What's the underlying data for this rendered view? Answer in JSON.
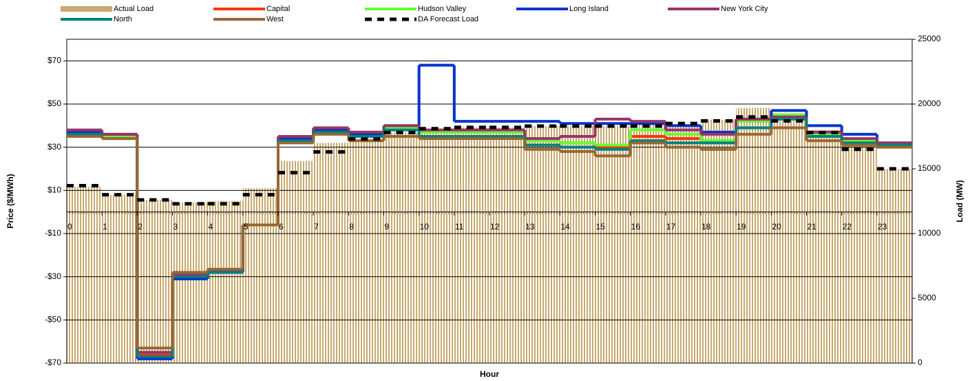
{
  "chart_data": {
    "type": "line",
    "x": [
      0,
      1,
      2,
      3,
      4,
      5,
      6,
      7,
      8,
      9,
      10,
      11,
      12,
      13,
      14,
      15,
      16,
      17,
      18,
      19,
      20,
      21,
      22,
      23
    ],
    "xlim": [
      0,
      24
    ],
    "xticks": [
      0,
      1,
      2,
      3,
      4,
      5,
      6,
      7,
      8,
      9,
      10,
      11,
      12,
      13,
      14,
      15,
      16,
      17,
      18,
      19,
      20,
      21,
      22,
      23
    ],
    "xlabel": "Hour",
    "ylabel": "Price ($/MWh)",
    "y2label": "Load (MW)",
    "ylim": [
      -70,
      80
    ],
    "yticks": [
      {
        "value": -70,
        "label": "-$70"
      },
      {
        "value": -50,
        "label": "-$50"
      },
      {
        "value": -30,
        "label": "-$30"
      },
      {
        "value": -10,
        "label": "-$10"
      },
      {
        "value": 10,
        "label": "$10"
      },
      {
        "value": 30,
        "label": "$30"
      },
      {
        "value": 50,
        "label": "$50"
      },
      {
        "value": 70,
        "label": "$70"
      }
    ],
    "y2lim": [
      0,
      25000
    ],
    "y2ticks": [
      0,
      5000,
      10000,
      15000,
      20000,
      25000
    ],
    "grid": true,
    "series": [
      {
        "name": "Actual Load",
        "type": "bar",
        "axis": "y2",
        "color": "#c8a96e",
        "values": [
          13600,
          13000,
          12600,
          12400,
          12500,
          13500,
          15600,
          17000,
          17300,
          17800,
          18100,
          18200,
          18200,
          18300,
          18300,
          18300,
          18400,
          18400,
          18800,
          19700,
          19000,
          18000,
          16800,
          15000
        ]
      },
      {
        "name": "Capital",
        "color": "#ff3300",
        "values": [
          37,
          35,
          -66,
          -30,
          -28,
          -6,
          34,
          38,
          36,
          39,
          37,
          37,
          37,
          33,
          32,
          30,
          35,
          34,
          33,
          42,
          45,
          36,
          33,
          31
        ]
      },
      {
        "name": "Hudson Valley",
        "color": "#66ff33",
        "values": [
          37,
          35,
          -65,
          -30,
          -28,
          -6,
          34,
          38,
          36,
          39,
          37,
          37,
          37,
          33,
          32,
          31,
          38,
          36,
          33,
          42,
          45,
          36,
          33,
          31
        ]
      },
      {
        "name": "Long Island",
        "color": "#0033cc",
        "values": [
          37,
          36,
          -68,
          -31,
          -28,
          -6,
          34,
          38,
          36,
          40,
          68,
          42,
          42,
          42,
          41,
          41,
          41,
          40,
          37,
          43,
          47,
          40,
          36,
          32
        ]
      },
      {
        "name": "New York City",
        "color": "#993366",
        "values": [
          38,
          36,
          -65,
          -29,
          -27,
          -6,
          35,
          39,
          37,
          40,
          38,
          38,
          38,
          34,
          35,
          43,
          42,
          38,
          36,
          43,
          44,
          37,
          34,
          32
        ]
      },
      {
        "name": "North",
        "color": "#008080",
        "values": [
          36,
          34,
          -67,
          -30,
          -28,
          -6,
          33,
          37,
          35,
          38,
          35,
          35,
          35,
          31,
          30,
          29,
          33,
          32,
          32,
          39,
          43,
          35,
          32,
          31
        ]
      },
      {
        "name": "West",
        "color": "#996633",
        "values": [
          35,
          34,
          -63,
          -28,
          -26.5,
          -6,
          32,
          36,
          33,
          35,
          34,
          34,
          34,
          29,
          28,
          26,
          32,
          30,
          29,
          36,
          39,
          33,
          31,
          30
        ]
      },
      {
        "name": "DA Forecast Load",
        "axis": "y2",
        "color": "#000000",
        "dashed": true,
        "values": [
          13700,
          13000,
          12600,
          12300,
          12300,
          13000,
          14700,
          16300,
          17300,
          17800,
          18100,
          18200,
          18200,
          18300,
          18300,
          18300,
          18300,
          18500,
          18700,
          19000,
          18700,
          17800,
          16500,
          15000
        ]
      }
    ]
  }
}
